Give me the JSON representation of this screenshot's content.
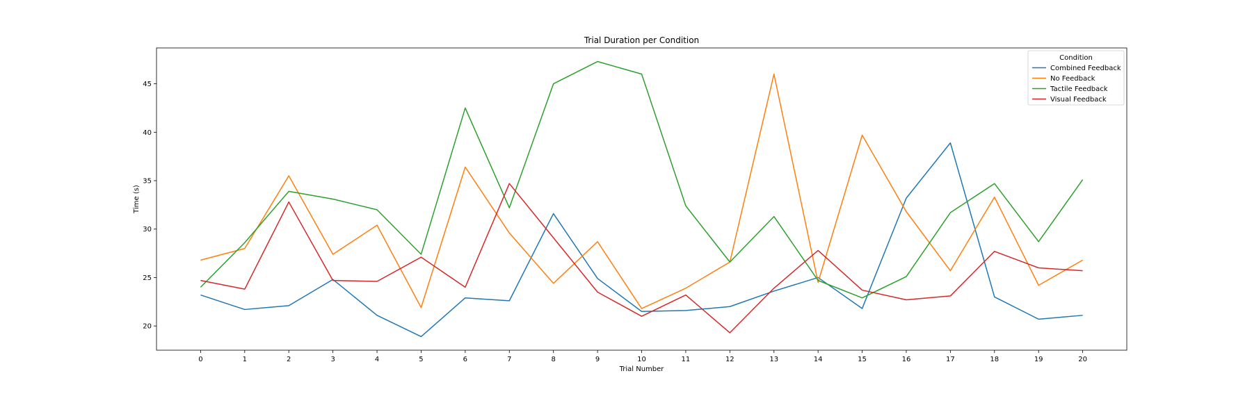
{
  "chart_data": {
    "type": "line",
    "title": "Trial Duration per Condition",
    "xlabel": "Trial Number",
    "ylabel": "Time (s)",
    "x": [
      0,
      1,
      2,
      3,
      4,
      5,
      6,
      7,
      8,
      9,
      10,
      11,
      12,
      13,
      14,
      15,
      16,
      17,
      18,
      19,
      20
    ],
    "xlim": [
      -1,
      21
    ],
    "ylim": [
      17.5,
      48.7
    ],
    "yticks": [
      20,
      25,
      30,
      35,
      40,
      45
    ],
    "grid": false,
    "legend": {
      "title": "Condition",
      "position": "top-right"
    },
    "series": [
      {
        "name": "Combined Feedback",
        "color": "#1f77b4",
        "values": [
          23.2,
          21.7,
          22.1,
          24.8,
          21.1,
          18.9,
          22.9,
          22.6,
          31.6,
          24.9,
          21.5,
          21.6,
          22.0,
          23.6,
          25.0,
          21.8,
          33.2,
          38.9,
          23.0,
          20.7,
          21.1
        ]
      },
      {
        "name": "No Feedback",
        "color": "#ff7f0e",
        "values": [
          26.8,
          28.0,
          35.5,
          27.4,
          30.4,
          21.9,
          36.4,
          29.6,
          24.4,
          28.7,
          21.8,
          23.9,
          26.6,
          46.0,
          24.5,
          39.7,
          31.8,
          25.7,
          33.3,
          24.2,
          26.8
        ]
      },
      {
        "name": "Tactile Feedback",
        "color": "#2ca02c",
        "values": [
          24.0,
          28.6,
          33.9,
          33.1,
          32.0,
          27.4,
          42.5,
          32.2,
          45.0,
          47.3,
          46.0,
          32.4,
          26.6,
          31.3,
          24.7,
          22.9,
          25.1,
          31.7,
          34.7,
          28.7,
          35.1
        ]
      },
      {
        "name": "Visual Feedback",
        "color": "#d62728",
        "values": [
          24.7,
          23.8,
          32.8,
          24.7,
          24.6,
          27.1,
          24.0,
          34.7,
          29.1,
          23.5,
          21.0,
          23.2,
          19.3,
          23.9,
          27.8,
          23.7,
          22.7,
          23.1,
          27.7,
          26.0,
          25.7
        ]
      }
    ]
  }
}
